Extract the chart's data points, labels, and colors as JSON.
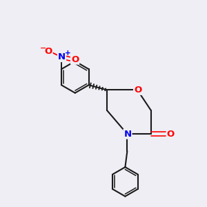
{
  "background_color": "#eeeef4",
  "bond_color": "#1a1a1a",
  "figsize": [
    3.0,
    3.0
  ],
  "dpi": 100,
  "xlim": [
    0,
    10
  ],
  "ylim": [
    0,
    10
  ]
}
